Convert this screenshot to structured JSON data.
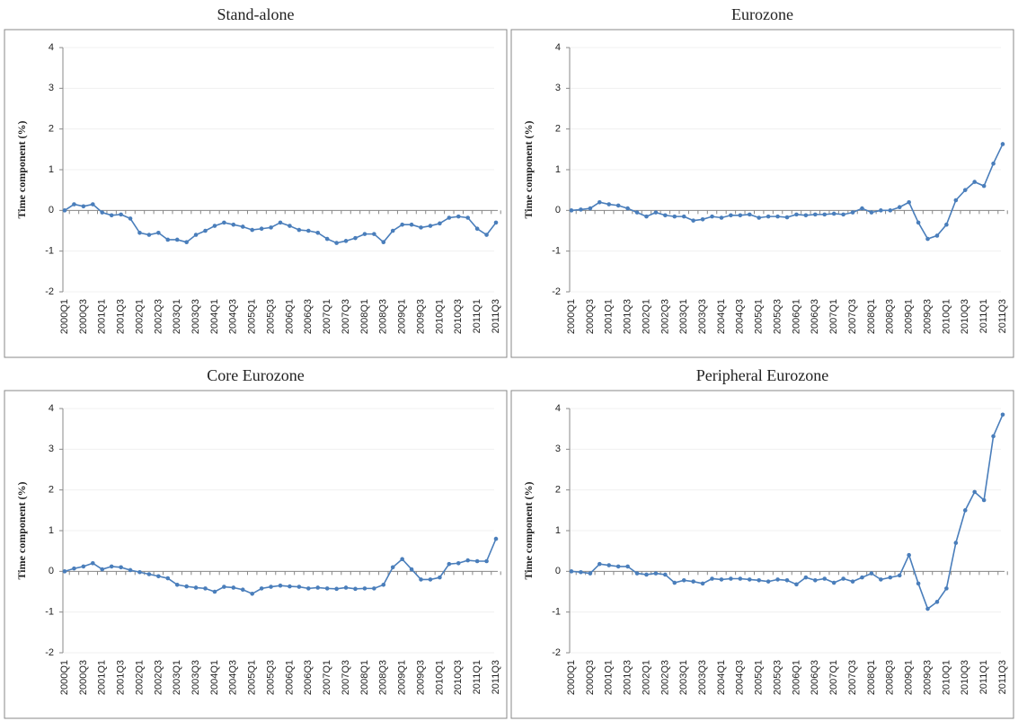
{
  "chart_data": [
    {
      "type": "line",
      "title": "Stand-alone",
      "y_label": "Time component (%)",
      "color": "#4a7ebb",
      "grid": true,
      "categories": [
        "2000Q1",
        null,
        "2000Q3",
        null,
        "2001Q1",
        null,
        "2001Q3",
        null,
        "2002Q1",
        null,
        "2002Q3",
        null,
        "2003Q1",
        null,
        "2003Q3",
        null,
        "2004Q1",
        null,
        "2004Q3",
        null,
        "2005Q1",
        null,
        "2005Q3",
        null,
        "2006Q1",
        null,
        "2006Q3",
        null,
        "2007Q1",
        null,
        "2007Q3",
        null,
        "2008Q1",
        null,
        "2008Q3",
        null,
        "2009Q1",
        null,
        "2009Q3",
        null,
        "2010Q1",
        null,
        "2010Q3",
        null,
        "2011Q1",
        null,
        "2011Q3"
      ],
      "values": [
        0,
        0.15,
        0.1,
        0.15,
        -0.05,
        -0.12,
        -0.1,
        -0.2,
        -0.55,
        -0.6,
        -0.55,
        -0.72,
        -0.72,
        -0.78,
        -0.6,
        -0.5,
        -0.38,
        -0.3,
        -0.35,
        -0.4,
        -0.48,
        -0.45,
        -0.42,
        -0.3,
        -0.38,
        -0.48,
        -0.5,
        -0.55,
        -0.7,
        -0.8,
        -0.75,
        -0.68,
        -0.58,
        -0.58,
        -0.78,
        -0.5,
        -0.35,
        -0.35,
        -0.42,
        -0.38,
        -0.32,
        -0.18,
        -0.15,
        -0.18,
        -0.45,
        -0.6,
        -0.3
      ],
      "ylim": [
        -2,
        4
      ],
      "yticks": [
        -2,
        -1,
        0,
        1,
        2,
        3,
        4
      ]
    },
    {
      "type": "line",
      "title": "Eurozone",
      "y_label": "Time component (%)",
      "color": "#4a7ebb",
      "grid": true,
      "categories": [
        "2000Q1",
        null,
        "2000Q3",
        null,
        "2001Q1",
        null,
        "2001Q3",
        null,
        "2002Q1",
        null,
        "2002Q3",
        null,
        "2003Q1",
        null,
        "2003Q3",
        null,
        "2004Q1",
        null,
        "2004Q3",
        null,
        "2005Q1",
        null,
        "2005Q3",
        null,
        "2006Q1",
        null,
        "2006Q3",
        null,
        "2007Q1",
        null,
        "2007Q3",
        null,
        "2008Q1",
        null,
        "2008Q3",
        null,
        "2009Q1",
        null,
        "2009Q3",
        null,
        "2010Q1",
        null,
        "2010Q3",
        null,
        "2011Q1",
        null,
        "2011Q3"
      ],
      "values": [
        0,
        0.02,
        0.05,
        0.2,
        0.15,
        0.12,
        0.05,
        -0.05,
        -0.15,
        -0.05,
        -0.12,
        -0.15,
        -0.15,
        -0.25,
        -0.22,
        -0.15,
        -0.18,
        -0.12,
        -0.12,
        -0.1,
        -0.18,
        -0.15,
        -0.15,
        -0.17,
        -0.1,
        -0.12,
        -0.1,
        -0.1,
        -0.08,
        -0.1,
        -0.05,
        0.05,
        -0.05,
        0,
        0,
        0.08,
        0.2,
        -0.3,
        -0.7,
        -0.62,
        -0.35,
        0.25,
        0.5,
        0.7,
        0.6,
        1.15,
        1.63
      ],
      "ylim": [
        -2,
        4
      ],
      "yticks": [
        -2,
        -1,
        0,
        1,
        2,
        3,
        4
      ]
    },
    {
      "type": "line",
      "title": "Core Eurozone",
      "y_label": "Time component (%)",
      "color": "#4a7ebb",
      "grid": true,
      "categories": [
        "2000Q1",
        null,
        "2000Q3",
        null,
        "2001Q1",
        null,
        "2001Q3",
        null,
        "2002Q1",
        null,
        "2002Q3",
        null,
        "2003Q1",
        null,
        "2003Q3",
        null,
        "2004Q1",
        null,
        "2004Q3",
        null,
        "2005Q1",
        null,
        "2005Q3",
        null,
        "2006Q1",
        null,
        "2006Q3",
        null,
        "2007Q1",
        null,
        "2007Q3",
        null,
        "2008Q1",
        null,
        "2008Q3",
        null,
        "2009Q1",
        null,
        "2009Q3",
        null,
        "2010Q1",
        null,
        "2010Q3",
        null,
        "2011Q1",
        null,
        "2011Q3"
      ],
      "values": [
        0,
        0.07,
        0.12,
        0.2,
        0.05,
        0.12,
        0.1,
        0.03,
        -0.02,
        -0.07,
        -0.12,
        -0.17,
        -0.33,
        -0.37,
        -0.4,
        -0.42,
        -0.5,
        -0.38,
        -0.4,
        -0.45,
        -0.55,
        -0.42,
        -0.38,
        -0.35,
        -0.37,
        -0.38,
        -0.42,
        -0.4,
        -0.42,
        -0.43,
        -0.4,
        -0.43,
        -0.42,
        -0.42,
        -0.33,
        0.1,
        0.3,
        0.05,
        -0.2,
        -0.2,
        -0.15,
        0.18,
        0.2,
        0.27,
        0.25,
        0.25,
        0.8
      ],
      "ylim": [
        -2,
        4
      ],
      "yticks": [
        -2,
        -1,
        0,
        1,
        2,
        3,
        4
      ]
    },
    {
      "type": "line",
      "title": "Peripheral Eurozone",
      "y_label": "Time component (%)",
      "color": "#4a7ebb",
      "grid": true,
      "categories": [
        "2000Q1",
        null,
        "2000Q3",
        null,
        "2001Q1",
        null,
        "2001Q3",
        null,
        "2002Q1",
        null,
        "2002Q3",
        null,
        "2003Q1",
        null,
        "2003Q3",
        null,
        "2004Q1",
        null,
        "2004Q3",
        null,
        "2005Q1",
        null,
        "2005Q3",
        null,
        "2006Q1",
        null,
        "2006Q3",
        null,
        "2007Q1",
        null,
        "2007Q3",
        null,
        "2008Q1",
        null,
        "2008Q3",
        null,
        "2009Q1",
        null,
        "2009Q3",
        null,
        "2010Q1",
        null,
        "2010Q3",
        null,
        "2011Q1",
        null,
        "2011Q3"
      ],
      "values": [
        0,
        -0.02,
        -0.05,
        0.18,
        0.15,
        0.12,
        0.12,
        -0.05,
        -0.08,
        -0.05,
        -0.08,
        -0.28,
        -0.22,
        -0.25,
        -0.3,
        -0.18,
        -0.2,
        -0.18,
        -0.18,
        -0.2,
        -0.22,
        -0.25,
        -0.2,
        -0.22,
        -0.32,
        -0.15,
        -0.22,
        -0.18,
        -0.28,
        -0.18,
        -0.25,
        -0.15,
        -0.05,
        -0.2,
        -0.15,
        -0.1,
        0.4,
        -0.3,
        -0.92,
        -0.75,
        -0.42,
        0.7,
        1.5,
        1.95,
        1.75,
        3.32,
        3.85
      ],
      "ylim": [
        -2,
        4
      ],
      "yticks": [
        -2,
        -1,
        0,
        1,
        2,
        3,
        4
      ]
    }
  ]
}
